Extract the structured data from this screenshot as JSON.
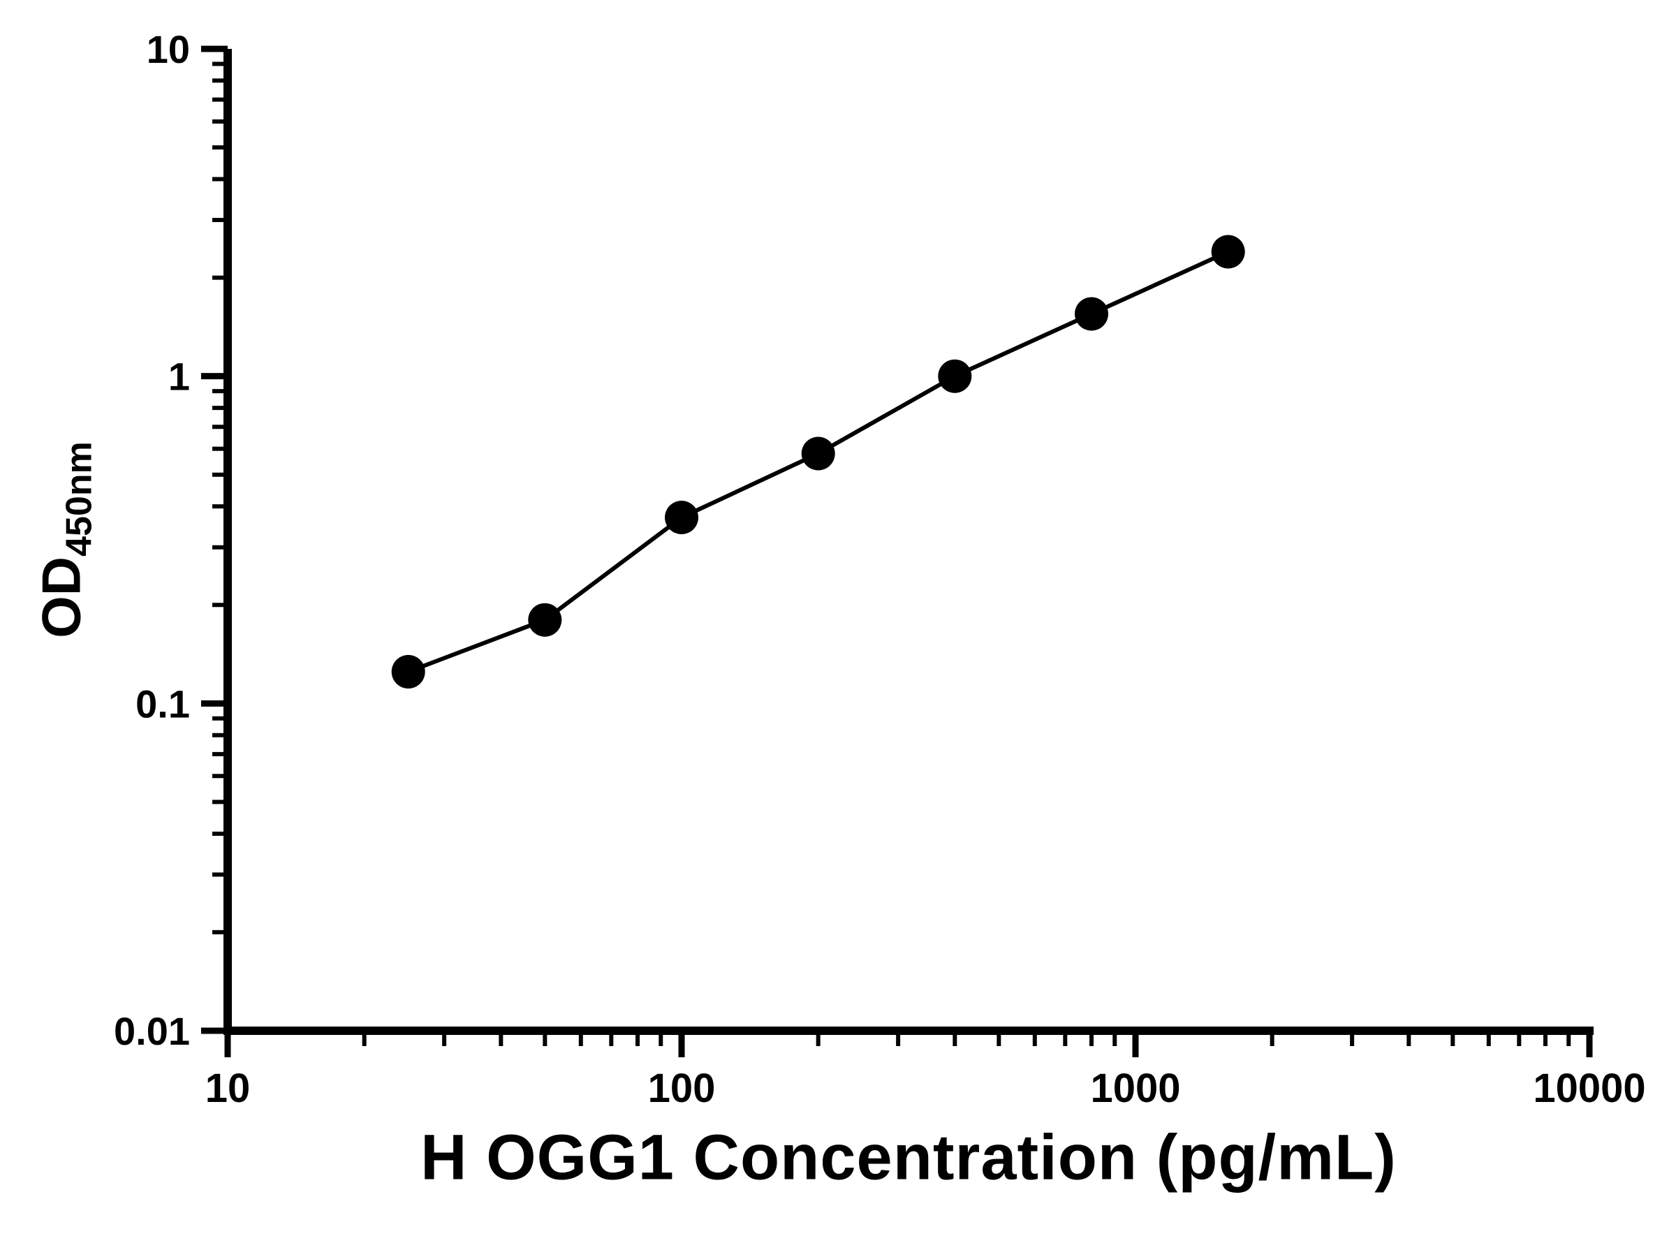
{
  "chart_data": {
    "type": "scatter",
    "connect_line": true,
    "title": "",
    "xlabel": "H OGG1 Concentration (pg/mL)",
    "ylabel_main": "OD",
    "ylabel_sub": "450nm",
    "x_scale": "log",
    "y_scale": "log",
    "xlim": [
      10,
      10000
    ],
    "ylim": [
      0.01,
      10
    ],
    "x_ticks": [
      "10",
      "100",
      "1000",
      "10000"
    ],
    "x_tick_values": [
      10,
      100,
      1000,
      10000
    ],
    "y_ticks": [
      "0.01",
      "0.1",
      "1",
      "10"
    ],
    "y_tick_values": [
      0.01,
      0.1,
      1,
      10
    ],
    "grid": false,
    "legend": false,
    "x": [
      25,
      50,
      100,
      200,
      400,
      800,
      1600
    ],
    "y": [
      0.125,
      0.18,
      0.37,
      0.58,
      1.0,
      1.55,
      2.4
    ],
    "marker_color": "#000000",
    "line_color": "#000000",
    "axis_color": "#000000"
  }
}
